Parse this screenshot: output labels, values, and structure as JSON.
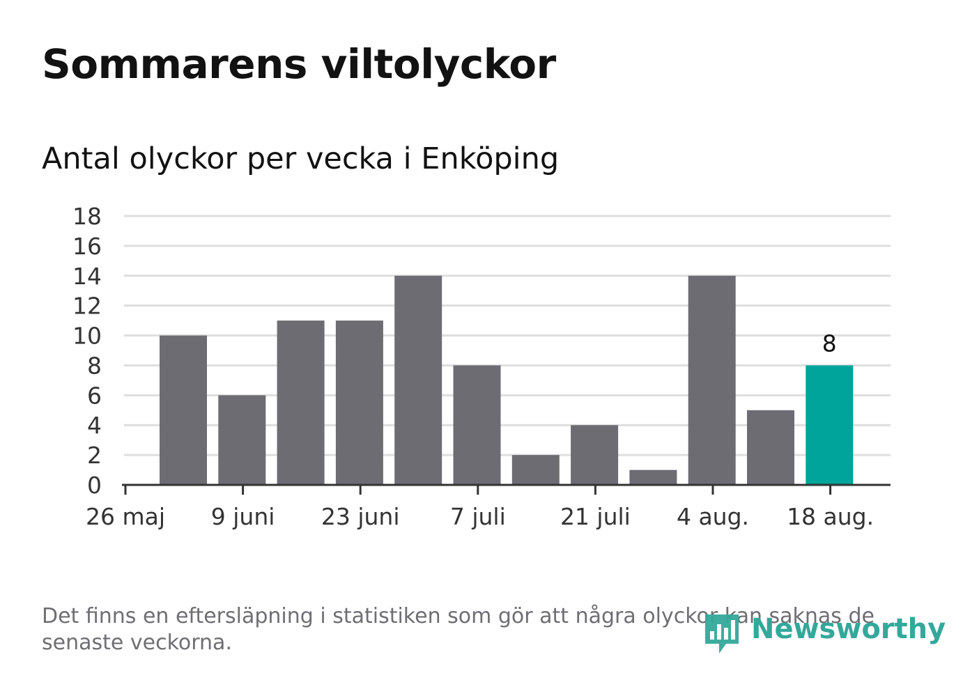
{
  "header": {
    "title": "Sommarens viltolyckor",
    "subtitle": "Antal olyckor per vecka i Enköping"
  },
  "chart_data": {
    "type": "bar",
    "title": "Sommarens viltolyckor",
    "subtitle": "Antal olyckor per vecka i Enköping",
    "xlabel": "",
    "ylabel": "",
    "ylim": [
      0,
      18
    ],
    "yticks": [
      "0",
      "2",
      "4",
      "6",
      "8",
      "10",
      "12",
      "14",
      "16",
      "18"
    ],
    "xtick_labels": [
      "26 maj",
      "9 juni",
      "23 juni",
      "7 juli",
      "21 juli",
      "4 aug.",
      "18 aug."
    ],
    "values": [
      10,
      6,
      11,
      11,
      14,
      8,
      2,
      4,
      1,
      14,
      5,
      8
    ],
    "highlight_label": "8",
    "grid": true,
    "colors": {
      "bar": "#6d6c73",
      "highlight": "#00a49a",
      "grid": "#dedede",
      "axis": "#333333"
    }
  },
  "footer": {
    "note": "Det finns en eftersläpning i statistiken som gör att några olyckor kan saknas de senaste veckorna.",
    "logo_text": "Newsworthy",
    "logo_icon": "bar-chart-badge-icon",
    "logo_color": "#34a89a"
  }
}
